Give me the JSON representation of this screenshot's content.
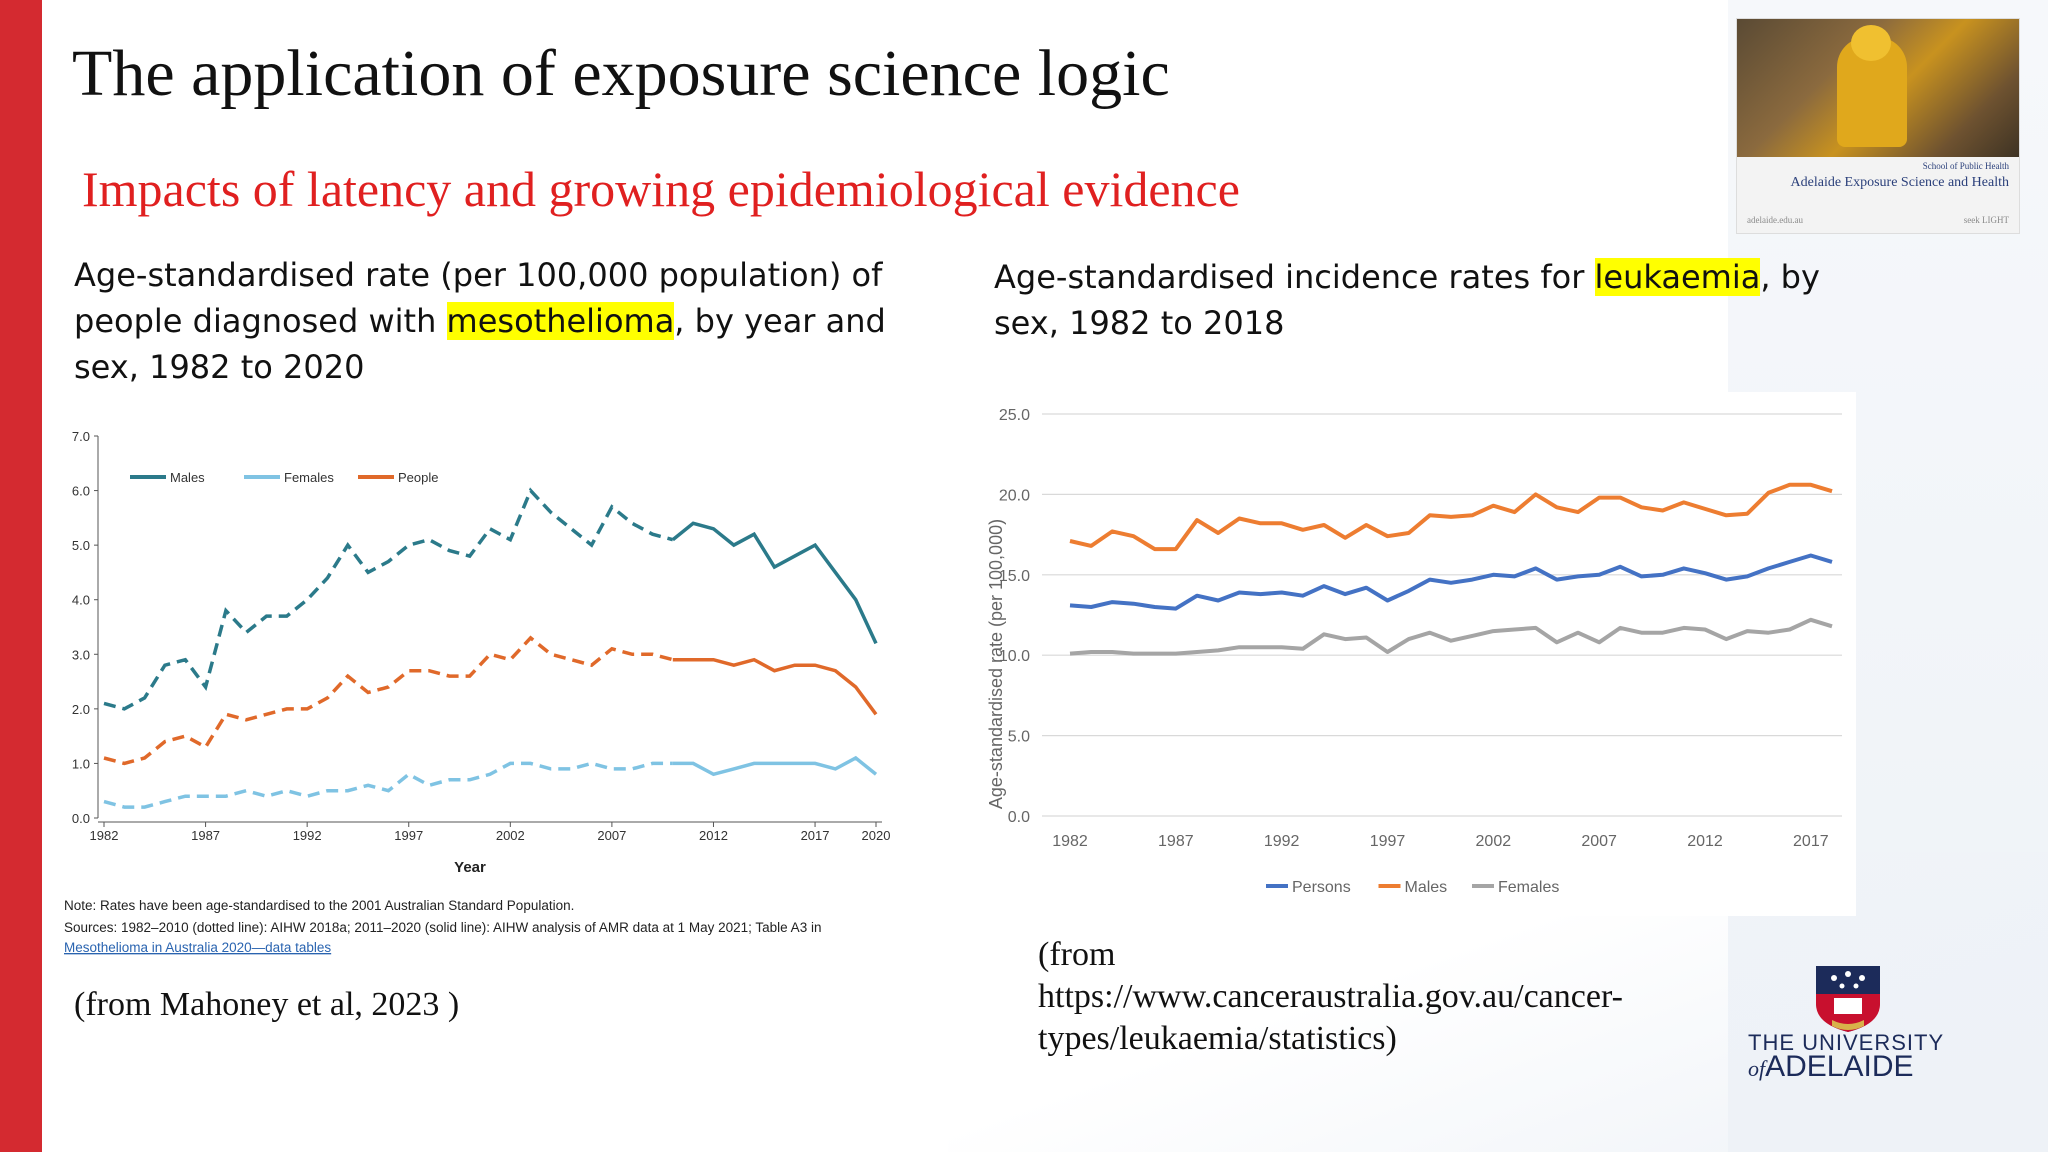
{
  "slide": {
    "title": "The application of exposure science logic",
    "subtitle": "Impacts of latency and growing epidemiological evidence"
  },
  "left": {
    "caption_pre": "Age-standardised rate (per 100,000 population) of people diagnosed with ",
    "caption_highlight": "mesothelioma",
    "caption_post": ", by year and sex, 1982 to 2020",
    "note": "Note: Rates have been age-standardised to the 2001 Australian Standard Population.",
    "sources_line1": "Sources: 1982–2010 (dotted line): AIHW 2018a; 2011–2020 (solid line): AIHW analysis of AMR data at 1 May 2021; Table A3 in",
    "sources_link": "Mesothelioma in Australia 2020—data tables",
    "sources_end": ".",
    "citation": "(from Mahoney et al, 2023 )"
  },
  "right": {
    "caption_pre": "Age-standardised incidence rates for ",
    "caption_highlight": "leukaemia",
    "caption_post": ", by sex, 1982 to 2018",
    "citation_l1": "(from",
    "citation_l2": "https://www.canceraustralia.gov.au/cancer-",
    "citation_l3": "types/leukaemia/statistics)"
  },
  "thumbnail": {
    "school": "School of Public Health",
    "title": "Adelaide Exposure Science and Health",
    "url": "adelaide.edu.au",
    "seek": "seek LIGHT"
  },
  "logo": {
    "line1": "THE UNIVERSITY",
    "line2": "ADELAIDE",
    "of": "of"
  },
  "chart_data": [
    {
      "type": "line",
      "title": "",
      "xlabel": "Year",
      "ylabel": "",
      "xlim": [
        1982,
        2020
      ],
      "ylim": [
        0,
        7
      ],
      "xticks": [
        "1982",
        "1987",
        "1992",
        "1997",
        "2002",
        "2007",
        "2012",
        "2017",
        "2020"
      ],
      "yticks": [
        "0.0",
        "1.0",
        "2.0",
        "3.0",
        "4.0",
        "5.0",
        "6.0",
        "7.0"
      ],
      "legend_position": "top-left",
      "dashed_until": 2010,
      "x": [
        1982,
        1983,
        1984,
        1985,
        1986,
        1987,
        1988,
        1989,
        1990,
        1991,
        1992,
        1993,
        1994,
        1995,
        1996,
        1997,
        1998,
        1999,
        2000,
        2001,
        2002,
        2003,
        2004,
        2005,
        2006,
        2007,
        2008,
        2009,
        2010,
        2011,
        2012,
        2013,
        2014,
        2015,
        2016,
        2017,
        2018,
        2019,
        2020
      ],
      "series": [
        {
          "name": "Males",
          "color": "#2b7a8a",
          "values": [
            2.1,
            2.0,
            2.2,
            2.8,
            2.9,
            2.4,
            3.8,
            3.4,
            3.7,
            3.7,
            4.0,
            4.4,
            5.0,
            4.5,
            4.7,
            5.0,
            5.1,
            4.9,
            4.8,
            5.3,
            5.1,
            6.0,
            5.6,
            5.3,
            5.0,
            5.7,
            5.4,
            5.2,
            5.1,
            5.4,
            5.3,
            5.0,
            5.2,
            4.6,
            4.8,
            5.0,
            4.5,
            4.0,
            3.2
          ]
        },
        {
          "name": "Females",
          "color": "#7fc3e3",
          "values": [
            0.3,
            0.2,
            0.2,
            0.3,
            0.4,
            0.4,
            0.4,
            0.5,
            0.4,
            0.5,
            0.4,
            0.5,
            0.5,
            0.6,
            0.5,
            0.8,
            0.6,
            0.7,
            0.7,
            0.8,
            1.0,
            1.0,
            0.9,
            0.9,
            1.0,
            0.9,
            0.9,
            1.0,
            1.0,
            1.0,
            0.8,
            0.9,
            1.0,
            1.0,
            1.0,
            1.0,
            0.9,
            1.1,
            0.8
          ]
        },
        {
          "name": "People",
          "color": "#e0692a",
          "values": [
            1.1,
            1.0,
            1.1,
            1.4,
            1.5,
            1.3,
            1.9,
            1.8,
            1.9,
            2.0,
            2.0,
            2.2,
            2.6,
            2.3,
            2.4,
            2.7,
            2.7,
            2.6,
            2.6,
            3.0,
            2.9,
            3.3,
            3.0,
            2.9,
            2.8,
            3.1,
            3.0,
            3.0,
            2.9,
            2.9,
            2.9,
            2.8,
            2.9,
            2.7,
            2.8,
            2.8,
            2.7,
            2.4,
            1.9
          ]
        }
      ]
    },
    {
      "type": "line",
      "title": "",
      "xlabel": "",
      "ylabel": "Age-standardised rate (per 100,000)",
      "xlim": [
        1982,
        2018
      ],
      "ylim": [
        0,
        25
      ],
      "xticks": [
        "1982",
        "1987",
        "1992",
        "1997",
        "2002",
        "2007",
        "2012",
        "2017"
      ],
      "yticks": [
        "0.0",
        "5.0",
        "10.0",
        "15.0",
        "20.0",
        "25.0"
      ],
      "legend_position": "bottom",
      "grid": true,
      "x": [
        1982,
        1983,
        1984,
        1985,
        1986,
        1987,
        1988,
        1989,
        1990,
        1991,
        1992,
        1993,
        1994,
        1995,
        1996,
        1997,
        1998,
        1999,
        2000,
        2001,
        2002,
        2003,
        2004,
        2005,
        2006,
        2007,
        2008,
        2009,
        2010,
        2011,
        2012,
        2013,
        2014,
        2015,
        2016,
        2017,
        2018
      ],
      "series": [
        {
          "name": "Persons",
          "color": "#4472c4",
          "values": [
            13.1,
            13.0,
            13.3,
            13.2,
            13.0,
            12.9,
            13.7,
            13.4,
            13.9,
            13.8,
            13.9,
            13.7,
            14.3,
            13.8,
            14.2,
            13.4,
            14.0,
            14.7,
            14.5,
            14.7,
            15.0,
            14.9,
            15.4,
            14.7,
            14.9,
            15.0,
            15.5,
            14.9,
            15.0,
            15.4,
            15.1,
            14.7,
            14.9,
            15.4,
            15.8,
            16.2,
            15.8
          ]
        },
        {
          "name": "Males",
          "color": "#ed7d31",
          "values": [
            17.1,
            16.8,
            17.7,
            17.4,
            16.6,
            16.6,
            18.4,
            17.6,
            18.5,
            18.2,
            18.2,
            17.8,
            18.1,
            17.3,
            18.1,
            17.4,
            17.6,
            18.7,
            18.6,
            18.7,
            19.3,
            18.9,
            20.0,
            19.2,
            18.9,
            19.8,
            19.8,
            19.2,
            19.0,
            19.5,
            19.1,
            18.7,
            18.8,
            20.1,
            20.6,
            20.6,
            20.2
          ]
        },
        {
          "name": "Females",
          "color": "#a5a5a5",
          "values": [
            10.1,
            10.2,
            10.2,
            10.1,
            10.1,
            10.1,
            10.2,
            10.3,
            10.5,
            10.5,
            10.5,
            10.4,
            11.3,
            11.0,
            11.1,
            10.2,
            11.0,
            11.4,
            10.9,
            11.2,
            11.5,
            11.6,
            11.7,
            10.8,
            11.4,
            10.8,
            11.7,
            11.4,
            11.4,
            11.7,
            11.6,
            11.0,
            11.5,
            11.4,
            11.6,
            12.2,
            11.8
          ]
        }
      ]
    }
  ]
}
